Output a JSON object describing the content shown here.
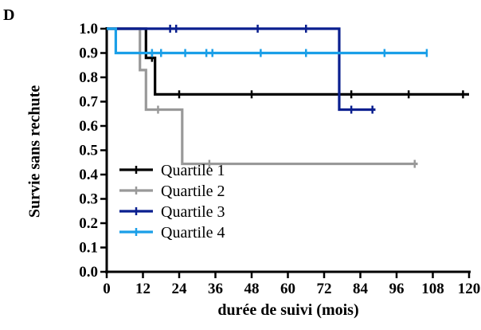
{
  "panel_label": "D",
  "chart_data": {
    "type": "line",
    "step": true,
    "xlabel": "durée de suivi (mois)",
    "ylabel": "Survie sans rechute",
    "xlim": [
      0,
      120
    ],
    "ylim": [
      0.0,
      1.0
    ],
    "xticks": [
      0,
      12,
      24,
      36,
      48,
      60,
      72,
      84,
      96,
      108,
      120
    ],
    "yticks": [
      0.0,
      0.1,
      0.2,
      0.3,
      0.4,
      0.5,
      0.6,
      0.7,
      0.8,
      0.9,
      1.0
    ],
    "ytick_labels": [
      "0.0",
      "0.1",
      "0.2",
      "0.3",
      "0.4",
      "0.5",
      "0.6",
      "0.7",
      "0.8",
      "0.9",
      "1.0"
    ],
    "grid": false,
    "legend_position": "bottom-left",
    "series": [
      {
        "name": "Quartile 1",
        "color": "#000000",
        "steps": [
          [
            0,
            1.0
          ],
          [
            13,
            0.88
          ],
          [
            16,
            0.73
          ],
          [
            120,
            0.73
          ]
        ],
        "censored": [
          [
            15,
            0.88
          ],
          [
            24,
            0.73
          ],
          [
            48,
            0.73
          ],
          [
            81,
            0.73
          ],
          [
            100,
            0.73
          ],
          [
            118,
            0.73
          ]
        ]
      },
      {
        "name": "Quartile 2",
        "color": "#999999",
        "steps": [
          [
            0,
            1.0
          ],
          [
            11,
            0.83
          ],
          [
            13,
            0.667
          ],
          [
            25,
            0.444
          ],
          [
            103,
            0.444
          ]
        ],
        "censored": [
          [
            17,
            0.667
          ],
          [
            34,
            0.444
          ],
          [
            102,
            0.444
          ]
        ]
      },
      {
        "name": "Quartile 3",
        "color": "#0a1f8f",
        "steps": [
          [
            0,
            1.0
          ],
          [
            77,
            0.667
          ],
          [
            89,
            0.667
          ]
        ],
        "censored": [
          [
            21,
            1.0
          ],
          [
            23,
            1.0
          ],
          [
            50,
            1.0
          ],
          [
            66,
            1.0
          ],
          [
            81,
            0.667
          ],
          [
            88,
            0.667
          ]
        ]
      },
      {
        "name": "Quartile 4",
        "color": "#1a9fe8",
        "steps": [
          [
            0,
            1.0
          ],
          [
            3,
            0.9
          ],
          [
            106,
            0.9
          ]
        ],
        "censored": [
          [
            15,
            0.9
          ],
          [
            18,
            0.9
          ],
          [
            26,
            0.9
          ],
          [
            33,
            0.9
          ],
          [
            35,
            0.9
          ],
          [
            51,
            0.9
          ],
          [
            66,
            0.9
          ],
          [
            92,
            0.9
          ],
          [
            106,
            0.9
          ]
        ]
      }
    ]
  }
}
